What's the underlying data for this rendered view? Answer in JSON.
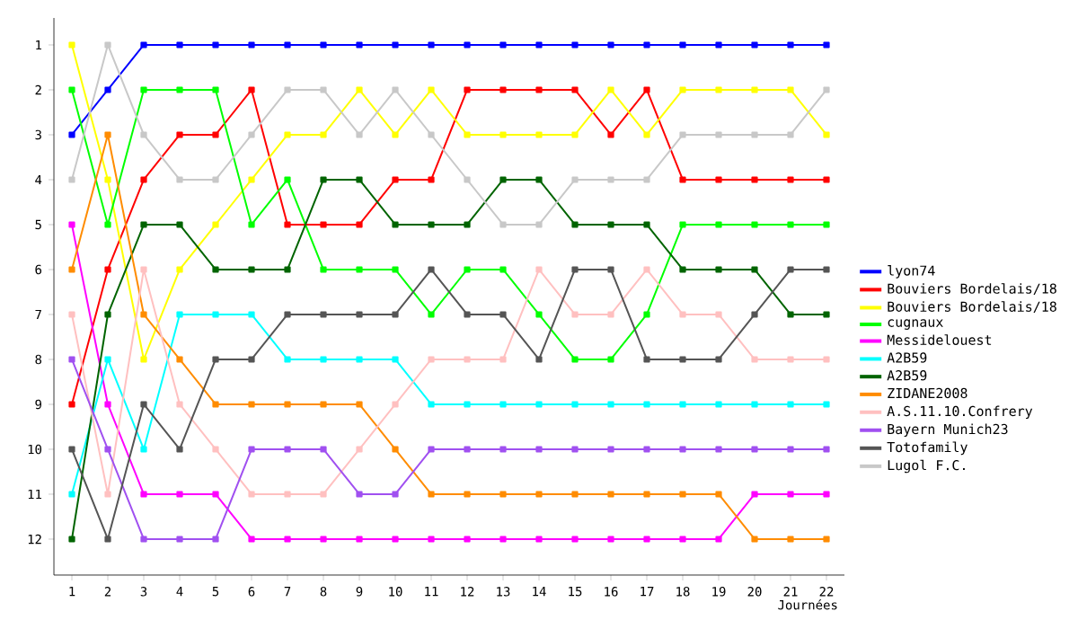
{
  "chart_data": {
    "type": "line",
    "xlabel": "Journées",
    "x": [
      1,
      2,
      3,
      4,
      5,
      6,
      7,
      8,
      9,
      10,
      11,
      12,
      13,
      14,
      15,
      16,
      17,
      18,
      19,
      20,
      21,
      22
    ],
    "xlim": [
      0.5,
      22.5
    ],
    "xticks": [
      1,
      2,
      3,
      4,
      5,
      6,
      7,
      8,
      9,
      10,
      11,
      12,
      13,
      14,
      15,
      16,
      17,
      18,
      19,
      20,
      21,
      22
    ],
    "ylim": [
      12.8,
      0.4
    ],
    "yticks": [
      1,
      2,
      3,
      4,
      5,
      6,
      7,
      8,
      9,
      10,
      11,
      12
    ],
    "grid": false,
    "legend": "right",
    "marker": "square",
    "line_style": "solid",
    "series": [
      {
        "name": "lyon74",
        "color": "#0000ff",
        "values": [
          3,
          2,
          1,
          1,
          1,
          1,
          1,
          1,
          1,
          1,
          1,
          1,
          1,
          1,
          1,
          1,
          1,
          1,
          1,
          1,
          1,
          1
        ]
      },
      {
        "name": "Bouviers Bordelais/18",
        "color": "#ff0000",
        "values": [
          9,
          6,
          4,
          3,
          3,
          2,
          5,
          5,
          5,
          4,
          4,
          2,
          2,
          2,
          2,
          3,
          2,
          4,
          4,
          4,
          4,
          4
        ]
      },
      {
        "name": "Bouviers Bordelais/18",
        "color": "#ffff00",
        "values": [
          1,
          4,
          8,
          6,
          5,
          4,
          3,
          3,
          2,
          3,
          2,
          3,
          3,
          3,
          3,
          2,
          3,
          2,
          2,
          2,
          2,
          3
        ]
      },
      {
        "name": "cugnaux",
        "color": "#00ff00",
        "values": [
          2,
          5,
          2,
          2,
          2,
          5,
          4,
          6,
          6,
          6,
          7,
          6,
          6,
          7,
          8,
          8,
          7,
          5,
          5,
          5,
          5,
          5
        ]
      },
      {
        "name": "Messidelouest",
        "color": "#ff00ff",
        "values": [
          5,
          9,
          11,
          11,
          11,
          12,
          12,
          12,
          12,
          12,
          12,
          12,
          12,
          12,
          12,
          12,
          12,
          12,
          12,
          11,
          11,
          11
        ]
      },
      {
        "name": "A2B59",
        "color": "#00ffff",
        "values": [
          11,
          8,
          10,
          7,
          7,
          7,
          8,
          8,
          8,
          8,
          9,
          9,
          9,
          9,
          9,
          9,
          9,
          9,
          9,
          9,
          9,
          9
        ]
      },
      {
        "name": "A2B59",
        "color": "#006400",
        "values": [
          12,
          7,
          5,
          5,
          6,
          6,
          6,
          4,
          4,
          5,
          5,
          5,
          4,
          4,
          5,
          5,
          5,
          6,
          6,
          6,
          7,
          7
        ]
      },
      {
        "name": "ZIDANE2008",
        "color": "#ff8c00",
        "values": [
          6,
          3,
          7,
          8,
          9,
          9,
          9,
          9,
          9,
          10,
          11,
          11,
          11,
          11,
          11,
          11,
          11,
          11,
          11,
          12,
          12,
          12
        ]
      },
      {
        "name": "A.S.11.10.Confrery",
        "color": "#ffc0c0",
        "values": [
          7,
          11,
          6,
          9,
          10,
          11,
          11,
          11,
          10,
          9,
          8,
          8,
          8,
          6,
          7,
          7,
          6,
          7,
          7,
          8,
          8,
          8
        ]
      },
      {
        "name": "Bayern Munich23",
        "color": "#a050f0",
        "values": [
          8,
          10,
          12,
          12,
          12,
          10,
          10,
          10,
          11,
          11,
          10,
          10,
          10,
          10,
          10,
          10,
          10,
          10,
          10,
          10,
          10,
          10
        ]
      },
      {
        "name": "Totofamily",
        "color": "#555555",
        "values": [
          10,
          12,
          9,
          10,
          8,
          8,
          7,
          7,
          7,
          7,
          6,
          7,
          7,
          8,
          6,
          6,
          8,
          8,
          8,
          7,
          6,
          6
        ]
      },
      {
        "name": "Lugol F.C.",
        "color": "#c8c8c8",
        "values": [
          4,
          1,
          3,
          4,
          4,
          3,
          2,
          2,
          3,
          2,
          3,
          4,
          5,
          5,
          4,
          4,
          4,
          3,
          3,
          3,
          3,
          2
        ]
      }
    ]
  }
}
